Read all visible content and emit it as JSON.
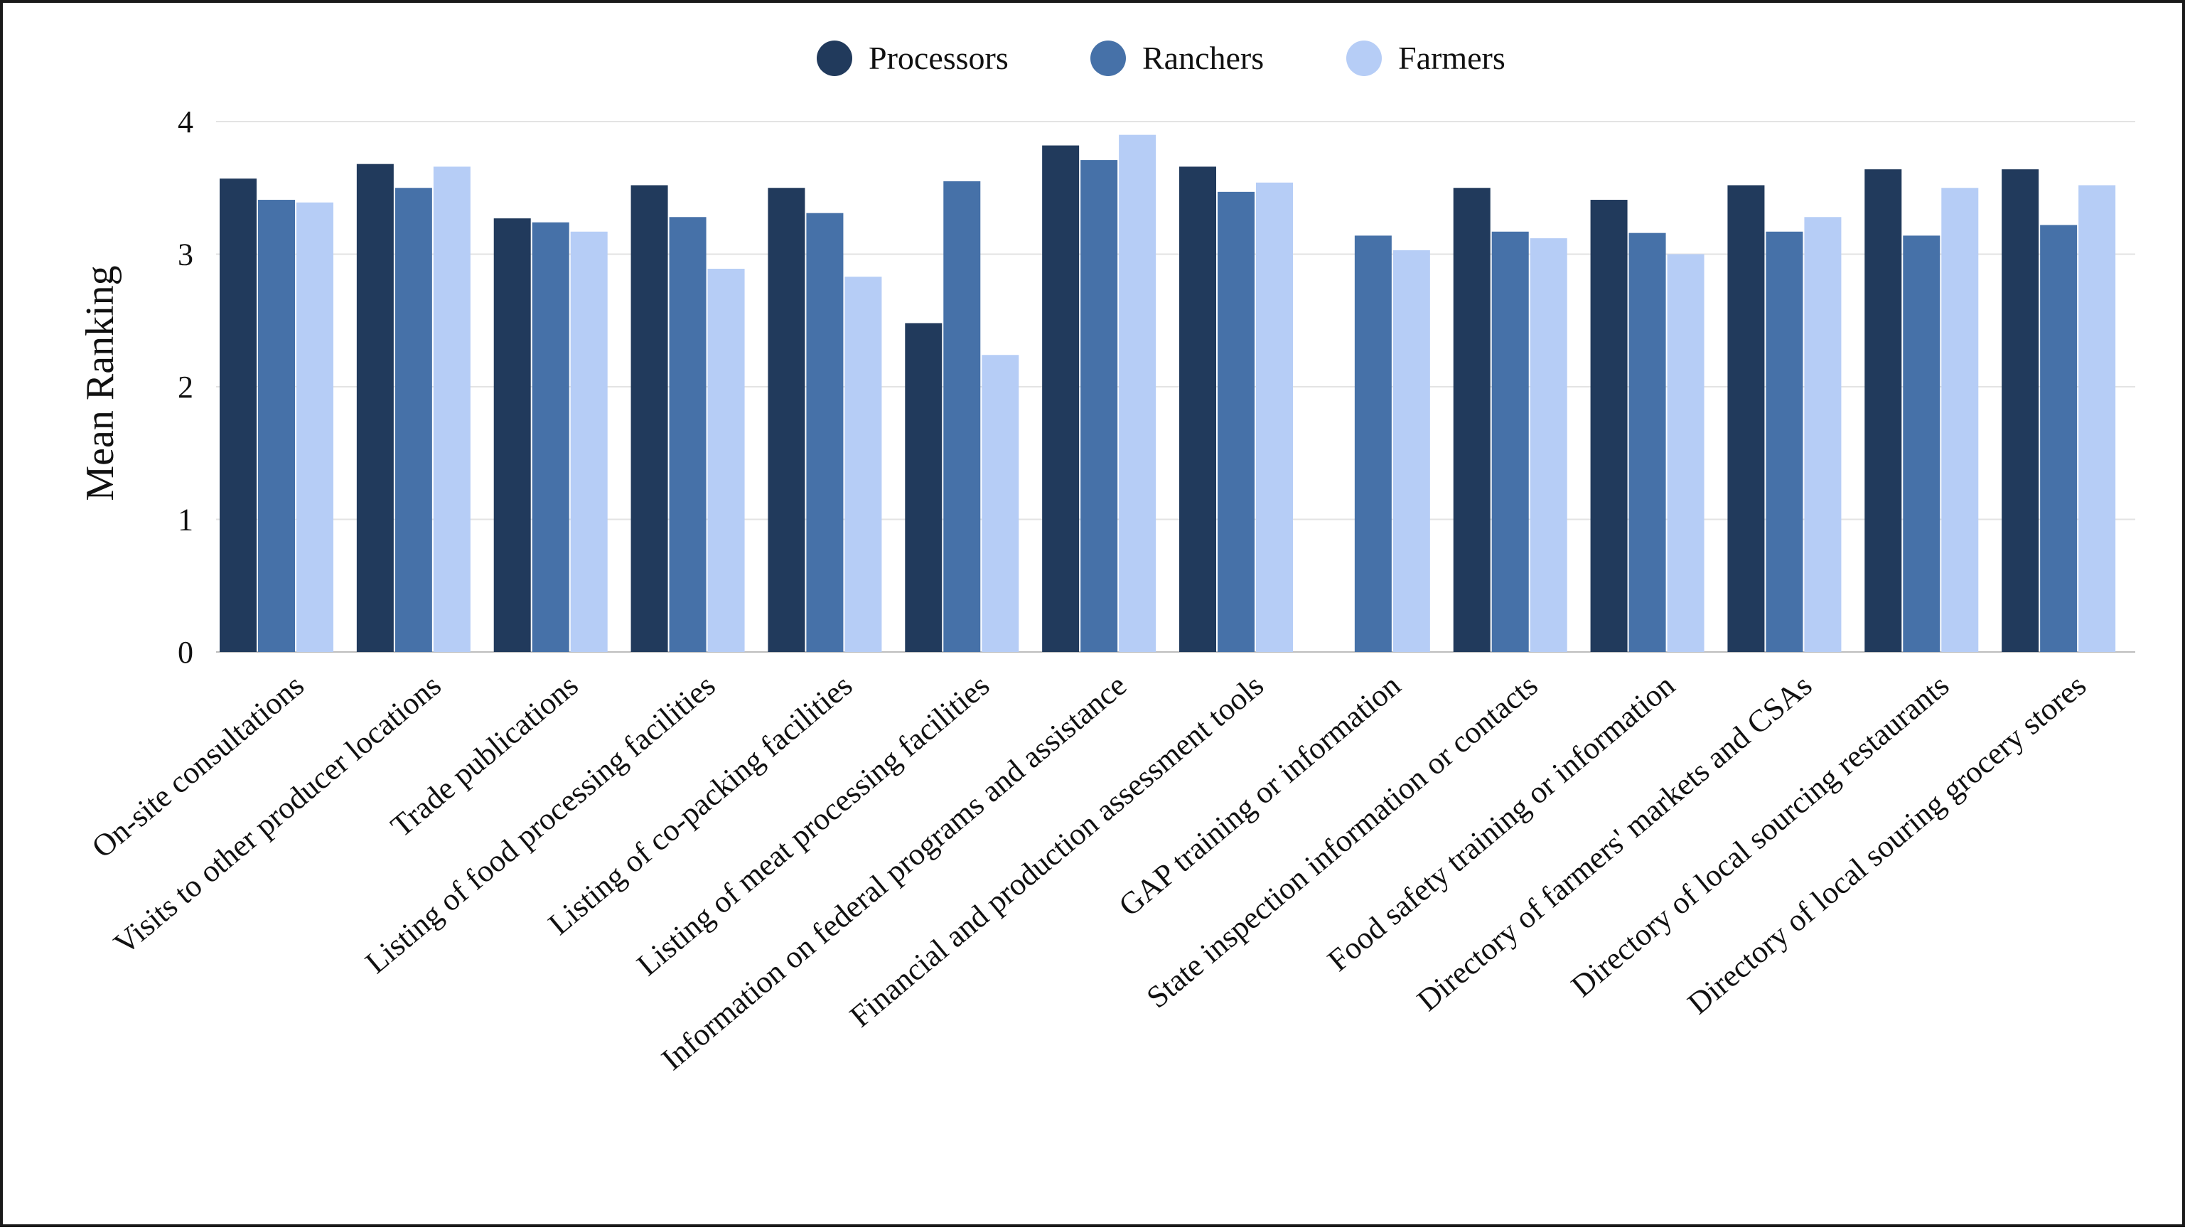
{
  "chart_data": {
    "type": "bar",
    "ylabel": "Mean Ranking",
    "xlabel": "",
    "ylim": [
      0,
      4
    ],
    "yticks": [
      0,
      1,
      2,
      3,
      4
    ],
    "grid": true,
    "legend_position": "top-center",
    "categories": [
      "On-site consultations",
      "Visits to other producer locations",
      "Trade publications",
      "Listing of food processing facilities",
      "Listing of co-packing facilities",
      "Listing of meat processing facilities",
      "Information on federal programs and assistance",
      "Financial and production assessment tools",
      "GAP training or information",
      "State inspection information or contacts",
      "Food safety training or information",
      "Directory of farmers' markets and CSAs",
      "Directory of local sourcing restaurants",
      "Directory of local souring grocery stores"
    ],
    "series": [
      {
        "name": "Processors",
        "color": "#213a5c",
        "values": [
          3.57,
          3.68,
          3.27,
          3.52,
          3.5,
          2.48,
          3.82,
          3.66,
          null,
          3.5,
          3.41,
          3.52,
          3.64,
          3.64
        ]
      },
      {
        "name": "Ranchers",
        "color": "#4671a8",
        "values": [
          3.41,
          3.5,
          3.24,
          3.28,
          3.31,
          3.55,
          3.71,
          3.47,
          3.14,
          3.17,
          3.16,
          3.17,
          3.14,
          3.22
        ]
      },
      {
        "name": "Farmers",
        "color": "#b6cdf6",
        "values": [
          3.39,
          3.66,
          3.17,
          2.89,
          2.83,
          2.24,
          3.9,
          3.54,
          3.03,
          3.12,
          3.0,
          3.28,
          3.5,
          3.52
        ]
      }
    ]
  }
}
